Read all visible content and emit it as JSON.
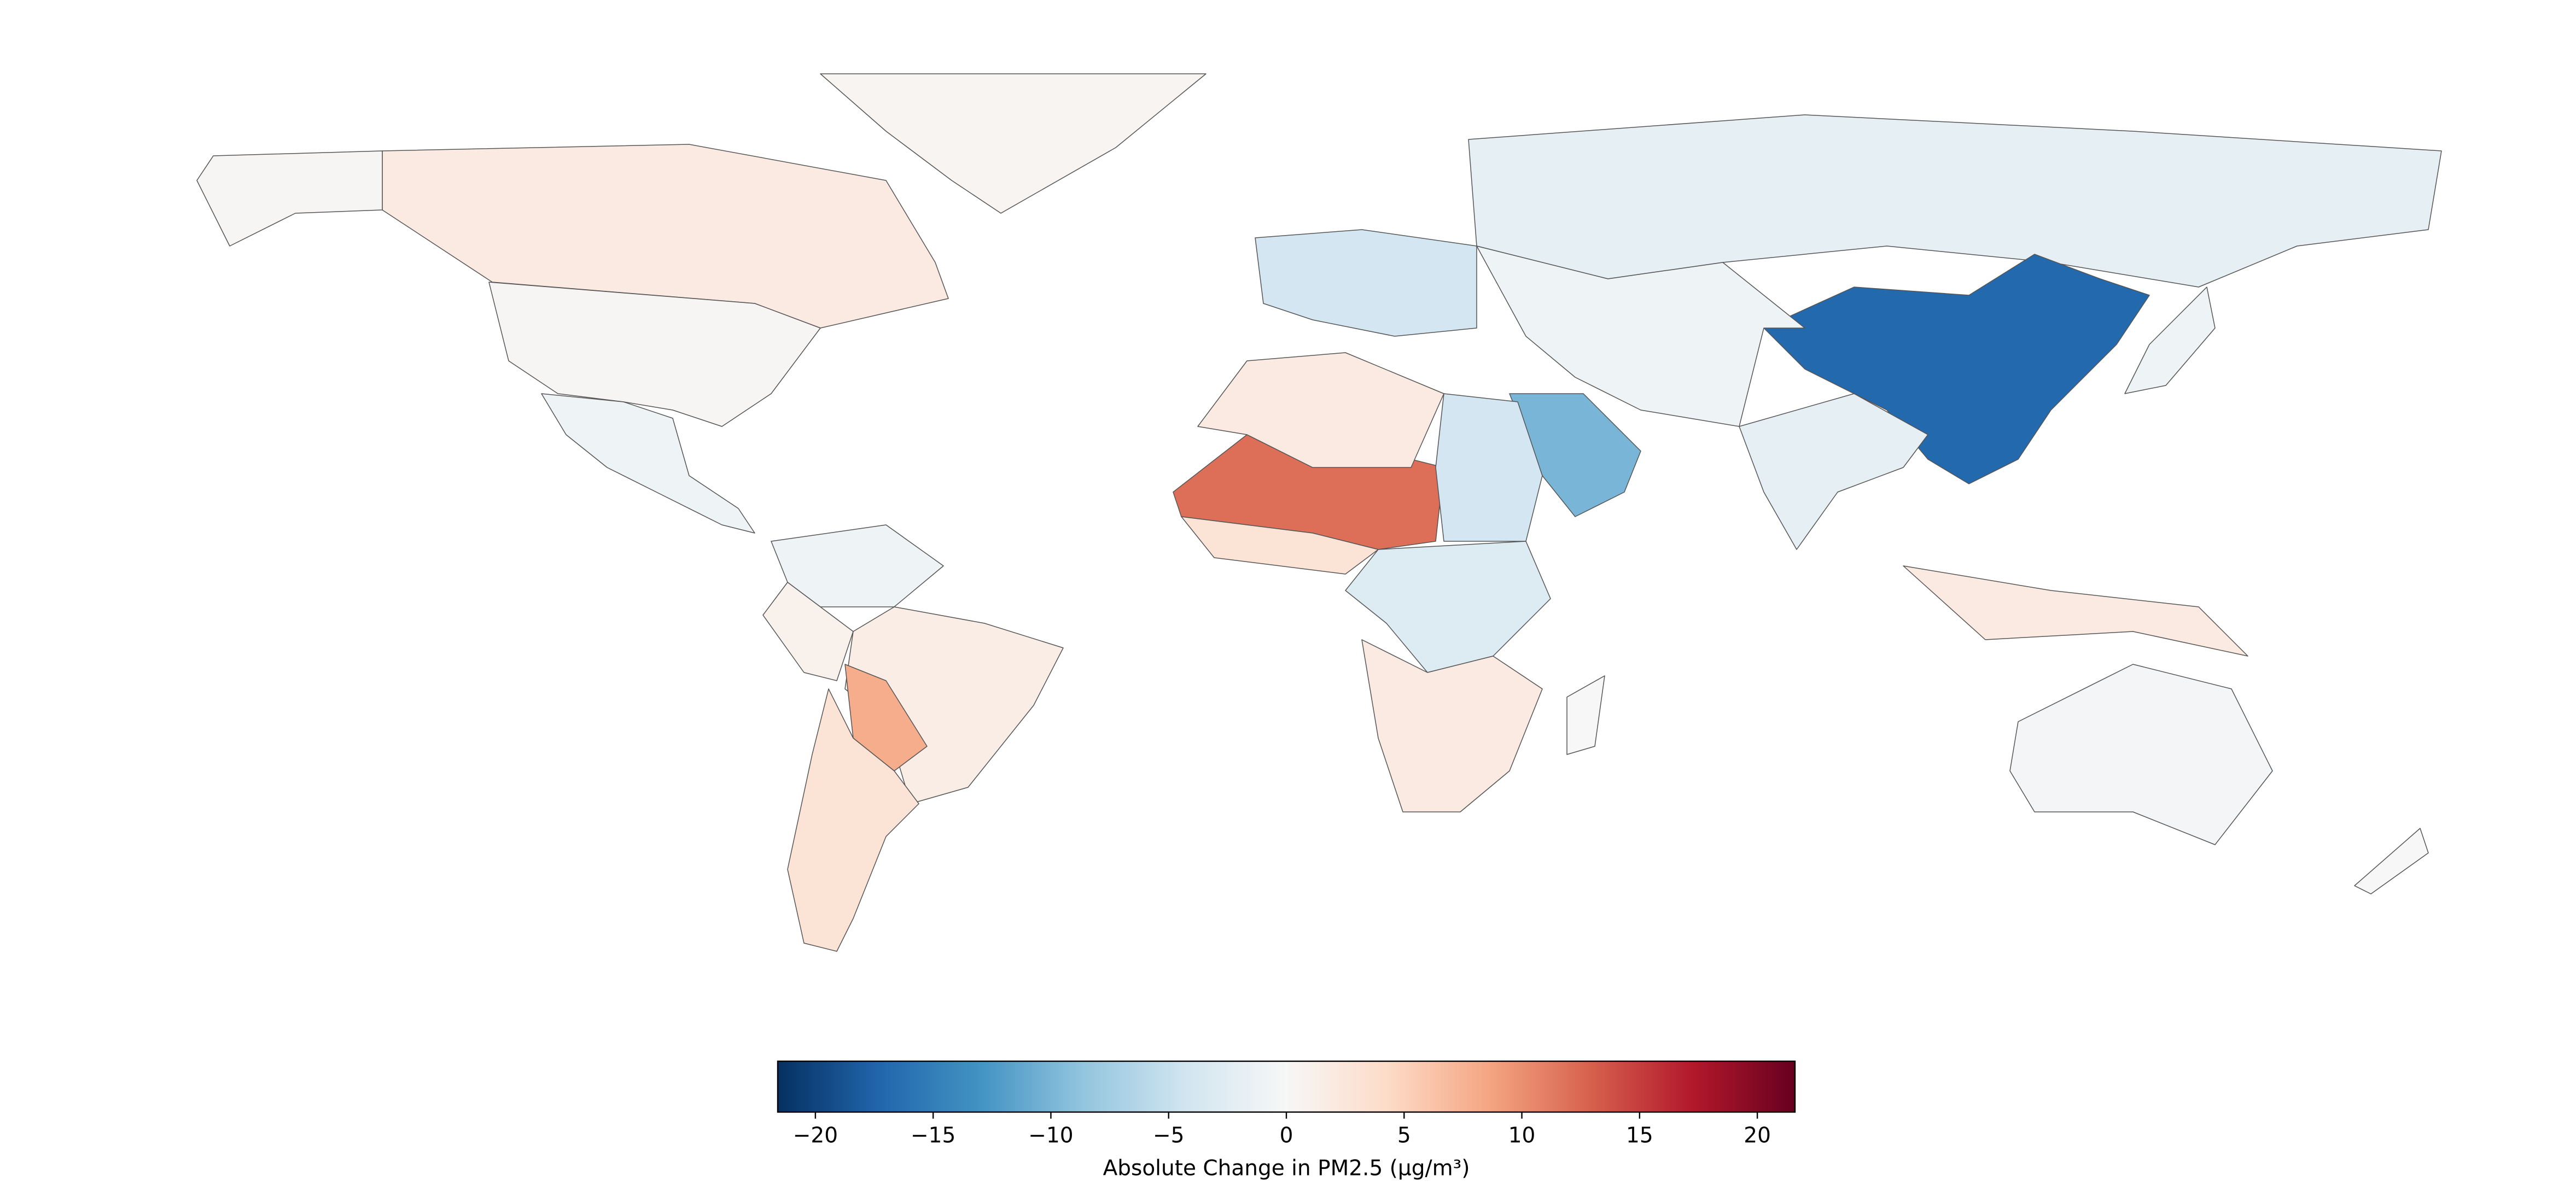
{
  "chart_data": {
    "type": "choropleth",
    "colormap": "RdBu_r",
    "values": [
      2,
      0.3,
      0.3,
      -1,
      0.5,
      -1,
      1.5,
      1,
      8,
      3,
      -4,
      -2,
      -17,
      -2,
      -10,
      12,
      2,
      -4,
      -3,
      2,
      3,
      -1,
      2,
      -0.5,
      0,
      -1,
      0
    ],
    "vlim": [
      -21.6,
      21.6
    ],
    "ticks": [
      {
        "value": -20,
        "label": "−20"
      },
      {
        "value": -15,
        "label": "−15"
      },
      {
        "value": -10,
        "label": "−10"
      },
      {
        "value": -5,
        "label": "−5"
      },
      0,
      5,
      10,
      15,
      20
    ],
    "colorbar_label": "Absolute Change in PM2.5 (µg/m³)"
  }
}
